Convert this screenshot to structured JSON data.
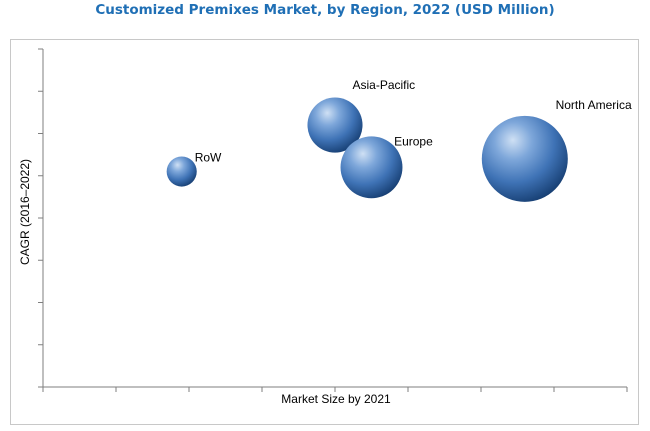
{
  "chart_data": {
    "type": "bubble",
    "title": "Customized Premixes Market, by Region, 2022 (USD Million)",
    "xlabel": "Market Size by 2021",
    "ylabel": "CAGR (2016–2022)",
    "xlim": [
      0,
      8
    ],
    "ylim": [
      0,
      8
    ],
    "grid": false,
    "series": [
      {
        "name": "RoW",
        "x": 1.9,
        "y": 5.1,
        "size": 0.35
      },
      {
        "name": "Asia-Pacific",
        "x": 4.0,
        "y": 6.2,
        "size": 0.64
      },
      {
        "name": "Europe",
        "x": 4.5,
        "y": 5.2,
        "size": 0.72
      },
      {
        "name": "North America",
        "x": 6.6,
        "y": 5.4,
        "size": 1.0
      }
    ],
    "colors": {
      "bubble_light": "#bcd4f0",
      "bubble_mid": "#4a80c4",
      "bubble_dark": "#163e72",
      "axis": "#7f7f7f"
    }
  }
}
